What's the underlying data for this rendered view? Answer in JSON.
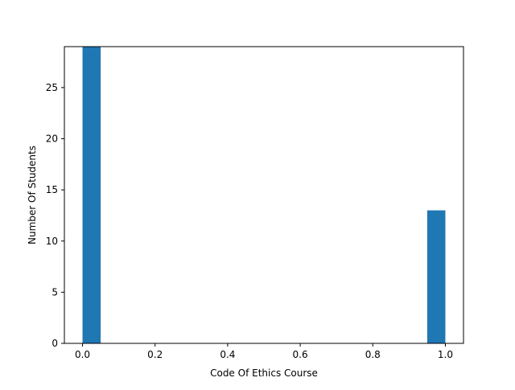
{
  "chart_data": {
    "type": "histogram",
    "title": "",
    "xlabel": "Code Of Ethics Course",
    "ylabel": "Number Of Students",
    "xlim": [
      -0.05,
      1.05
    ],
    "ylim": [
      0,
      29
    ],
    "x_ticks": [
      0.0,
      0.2,
      0.4,
      0.6,
      0.8,
      1.0
    ],
    "x_tick_labels": [
      "0.0",
      "0.2",
      "0.4",
      "0.6",
      "0.8",
      "1.0"
    ],
    "y_ticks": [
      0,
      5,
      10,
      15,
      20,
      25
    ],
    "y_tick_labels": [
      "0",
      "5",
      "10",
      "15",
      "20",
      "25"
    ],
    "bins": [
      {
        "x0": 0.0,
        "x1": 0.05,
        "count": 29
      },
      {
        "x0": 0.95,
        "x1": 1.0,
        "count": 13
      }
    ],
    "bar_color": "#1f77b4",
    "grid": false,
    "legend": "none"
  }
}
